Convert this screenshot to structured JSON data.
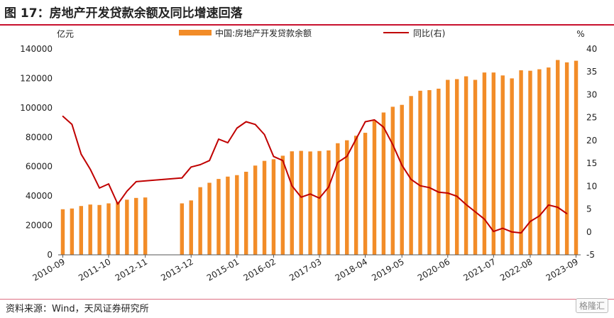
{
  "header": {
    "title": "图 17：房地产开发贷款余额及同比增速回落"
  },
  "footer": {
    "source": "资料来源：Wind，天风证券研究所",
    "watermark": "格隆汇"
  },
  "colors": {
    "bar": "#F28C28",
    "line": "#C00000",
    "rule": "#c8102e"
  },
  "chart_data": {
    "type": "bar",
    "legend_placement": "top",
    "left_unit": "亿元",
    "right_unit": "%",
    "legend": {
      "bar": "中国:房地产开发贷款余额",
      "line": "同比(右)"
    },
    "ylim_left": [
      0,
      140000
    ],
    "ylim_right": [
      -5,
      40
    ],
    "yticks_left": [
      "0",
      "20000",
      "40000",
      "60000",
      "80000",
      "100000",
      "120000",
      "140000"
    ],
    "yticks_right": [
      "-5",
      "0",
      "5",
      "10",
      "15",
      "20",
      "25",
      "30",
      "35",
      "40"
    ],
    "xtick_labels": [
      "2010-09",
      "2011-10",
      "2012-11",
      "2013-12",
      "2015-01",
      "2016-02",
      "2017-03",
      "2018-04",
      "2019-05",
      "2020-06",
      "2021-07",
      "2022-08",
      "2023-09"
    ],
    "series": [
      {
        "name": "中国:房地产开发贷款余额",
        "type": "bar",
        "axis": "left",
        "values": [
          31000,
          31500,
          33200,
          34200,
          33900,
          35000,
          36000,
          37500,
          38700,
          39000,
          null,
          null,
          null,
          35000,
          37000,
          46000,
          49000,
          51600,
          53200,
          54200,
          56500,
          60700,
          63900,
          65000,
          67400,
          70400,
          70700,
          70300,
          70600,
          71000,
          75900,
          77900,
          81000,
          83000,
          91100,
          96800,
          100700,
          102000,
          108000,
          111600,
          112000,
          113000,
          119000,
          119500,
          121400,
          119000,
          124000,
          124000,
          122000,
          120000,
          125500,
          125200,
          126200,
          127400,
          132500,
          130900,
          132000
        ]
      },
      {
        "name": "同比(右)",
        "type": "line",
        "axis": "right",
        "points": [
          [
            0,
            25.3
          ],
          [
            1,
            23.5
          ],
          [
            2,
            17.0
          ],
          [
            3,
            13.7
          ],
          [
            4,
            9.6
          ],
          [
            5,
            10.5
          ],
          [
            6,
            6.1
          ],
          [
            7,
            8.9
          ],
          [
            8,
            11.0
          ],
          [
            11,
            11.5
          ],
          [
            13,
            11.8
          ],
          [
            14,
            14.2
          ],
          [
            15,
            14.7
          ],
          [
            16,
            15.6
          ],
          [
            17,
            20.3
          ],
          [
            18,
            19.5
          ],
          [
            19,
            22.7
          ],
          [
            20,
            24.1
          ],
          [
            21,
            23.5
          ],
          [
            22,
            21.3
          ],
          [
            23,
            16.5
          ],
          [
            24,
            15.6
          ],
          [
            25,
            10.1
          ],
          [
            26,
            7.6
          ],
          [
            27,
            8.3
          ],
          [
            28,
            7.4
          ],
          [
            29,
            9.8
          ],
          [
            30,
            15.2
          ],
          [
            31,
            16.5
          ],
          [
            32,
            20.3
          ],
          [
            33,
            24.1
          ],
          [
            34,
            24.5
          ],
          [
            35,
            22.9
          ],
          [
            36,
            19.1
          ],
          [
            37,
            14.6
          ],
          [
            38,
            11.5
          ],
          [
            39,
            10.1
          ],
          [
            40,
            9.7
          ],
          [
            41,
            8.7
          ],
          [
            42,
            8.5
          ],
          [
            43,
            7.8
          ],
          [
            44,
            6.0
          ],
          [
            45,
            4.4
          ],
          [
            46,
            2.8
          ],
          [
            47,
            0.1
          ],
          [
            48,
            0.8
          ],
          [
            49,
            0.0
          ],
          [
            50,
            -0.2
          ],
          [
            51,
            2.3
          ],
          [
            52,
            3.5
          ],
          [
            53,
            5.9
          ],
          [
            54,
            5.4
          ],
          [
            55,
            4.0
          ]
        ]
      }
    ]
  }
}
